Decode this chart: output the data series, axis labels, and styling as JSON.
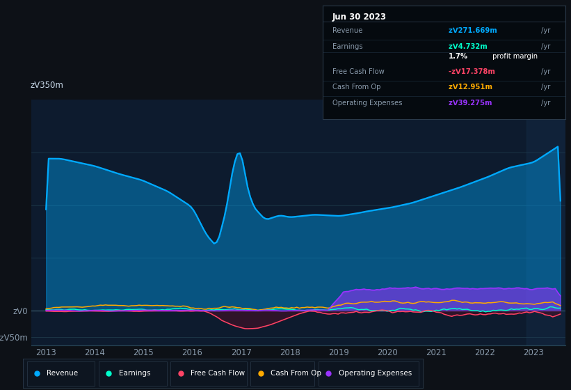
{
  "bg_color": "#0d1117",
  "plot_bg_color": "#0d1b2e",
  "grid_color": "#1e3a4a",
  "tick_label_color": "#8899aa",
  "revenue_color": "#00aaff",
  "earnings_color": "#00ffcc",
  "fcf_color": "#ff4466",
  "cashop_color": "#ffaa00",
  "opex_color": "#9933ff",
  "ylim": [
    -65,
    400
  ],
  "legend_labels": [
    "Revenue",
    "Earnings",
    "Free Cash Flow",
    "Cash From Op",
    "Operating Expenses"
  ],
  "box_date": "Jun 30 2023",
  "box_rows": [
    {
      "label": "Revenue",
      "value": "zᐯ271.669m /yr",
      "color": "#00aaff"
    },
    {
      "label": "Earnings",
      "value": "zᐯ4.732m /yr",
      "color": "#00ffcc"
    },
    {
      "label": "",
      "value2a": "1.7%",
      "value2b": " profit margin",
      "color": "#ffffff"
    },
    {
      "label": "Free Cash Flow",
      "value": "-zᐯ17.378m /yr",
      "color": "#ff4466"
    },
    {
      "label": "Cash From Op",
      "value": "zᐯ12.951m /yr",
      "color": "#ffaa00"
    },
    {
      "label": "Operating Expenses",
      "value": "zᐯ39.275m /yr",
      "color": "#9933ff"
    }
  ]
}
